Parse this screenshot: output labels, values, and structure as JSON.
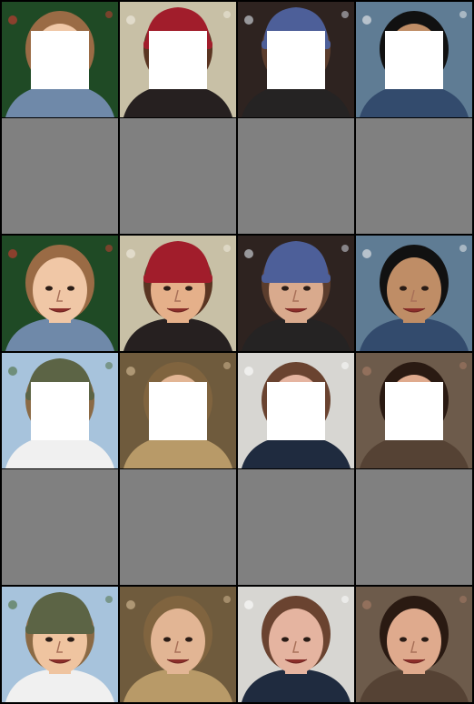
{
  "grid": {
    "rows": 6,
    "cols": 4,
    "background": "#000000",
    "empty_color": "#808080",
    "mask_color": "#ffffff",
    "row_types": [
      "masked",
      "empty",
      "full",
      "masked",
      "empty",
      "full"
    ]
  },
  "subjects": [
    {
      "id": "toddler-christmas-tree",
      "bg": "#1f4a25",
      "skin": "#f0c7a6",
      "hair": "#9a6b45",
      "hat": null,
      "shirt": "#6f89a9",
      "accent": "#d43b33"
    },
    {
      "id": "woman-red-beanie",
      "bg": "#c8c0a6",
      "skin": "#e5b08a",
      "hair": "#5a3522",
      "hat": "#a11d2b",
      "shirt": "#262020",
      "accent": "#f1ede2"
    },
    {
      "id": "man-blue-white-beanie",
      "bg": "#2e2320",
      "skin": "#d9aa8d",
      "hair": "#5b3d2d",
      "hat": "#4d5f99",
      "shirt": "#252323",
      "accent": "#dfe6ef"
    },
    {
      "id": "man-dark-hair",
      "bg": "#5f7c94",
      "skin": "#bf8d66",
      "hair": "#111111",
      "hat": null,
      "shirt": "#334b6d",
      "accent": "#f2f2f2"
    },
    {
      "id": "woman-green-cap",
      "bg": "#a7c3dc",
      "skin": "#efc4a0",
      "hair": "#8b6a45",
      "hat": "#5c6445",
      "shirt": "#f0f0f0",
      "accent": "#4a6a38"
    },
    {
      "id": "woman-laughing-braids",
      "bg": "#6f5b3d",
      "skin": "#e2b594",
      "hair": "#80643f",
      "hat": null,
      "shirt": "#b89a68",
      "accent": "#d9c09a"
    },
    {
      "id": "older-man-smiling",
      "bg": "#d7d6d2",
      "skin": "#e5b4a0",
      "hair": "#6a4330",
      "hat": null,
      "shirt": "#1f2b3f",
      "accent": "#ffffff"
    },
    {
      "id": "two-young-men",
      "bg": "#6d5b4b",
      "skin": "#dfaa8d",
      "hair": "#2a1a12",
      "hat": null,
      "shirt": "#554234",
      "accent": "#ac7e68"
    }
  ]
}
